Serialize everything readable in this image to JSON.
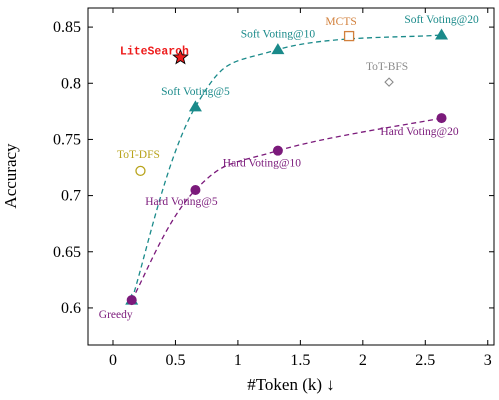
{
  "chart_data": {
    "type": "scatter",
    "title": "",
    "xlabel": "#Token (k) ↓",
    "ylabel": "Accuracy",
    "xlim": [
      -0.2,
      3.05
    ],
    "ylim": [
      0.567,
      0.867
    ],
    "xticks": [
      0,
      0.5,
      1,
      1.5,
      2,
      2.5,
      3
    ],
    "xtick_labels": [
      "0",
      "0.5",
      "1",
      "1.5",
      "2",
      "2.5",
      "3"
    ],
    "yticks": [
      0.6,
      0.65,
      0.7,
      0.75,
      0.8,
      0.85
    ],
    "ytick_labels": [
      "0.6",
      "0.65",
      "0.7",
      "0.75",
      "0.8",
      "0.85"
    ],
    "grid": false,
    "colors": {
      "soft_voting": "#1a8a8a",
      "hard_voting": "#7b1a7b",
      "litesearch": "#ee1c1c",
      "tot_dfs": "#b8a31a",
      "mcts": "#d2803c",
      "tot_bfs": "#8a8a8a"
    },
    "series": [
      {
        "key": "soft",
        "marker": "triangle",
        "color": "#1a8a8a",
        "dashed": true,
        "points": [
          {
            "x": 0.15,
            "y": 0.607,
            "label": ""
          },
          {
            "x": 0.66,
            "y": 0.779,
            "label": "Soft Voting@5"
          },
          {
            "x": 1.32,
            "y": 0.83,
            "label": "Soft Voting@10"
          },
          {
            "x": 2.63,
            "y": 0.843,
            "label": "Soft Voting@20"
          }
        ]
      },
      {
        "key": "hard",
        "marker": "circle",
        "color": "#7b1a7b",
        "dashed": true,
        "points": [
          {
            "x": 0.15,
            "y": 0.607,
            "label": "Greedy"
          },
          {
            "x": 0.66,
            "y": 0.705,
            "label": "Hard Voting@5"
          },
          {
            "x": 1.32,
            "y": 0.74,
            "label": "Hard Voting@10"
          },
          {
            "x": 2.63,
            "y": 0.769,
            "label": "Hard Voting@20"
          }
        ]
      }
    ],
    "points": [
      {
        "label": "LiteSearch",
        "x": 0.54,
        "y": 0.823,
        "marker": "star",
        "color": "#ee1c1c"
      },
      {
        "label": "ToT-DFS",
        "x": 0.22,
        "y": 0.722,
        "marker": "open-circle",
        "color": "#b8a31a"
      },
      {
        "label": "MCTS",
        "x": 1.89,
        "y": 0.842,
        "marker": "open-square",
        "color": "#d2803c"
      },
      {
        "label": "ToT-BFS",
        "x": 2.21,
        "y": 0.801,
        "marker": "open-diamond",
        "color": "#8a8a8a"
      }
    ]
  }
}
